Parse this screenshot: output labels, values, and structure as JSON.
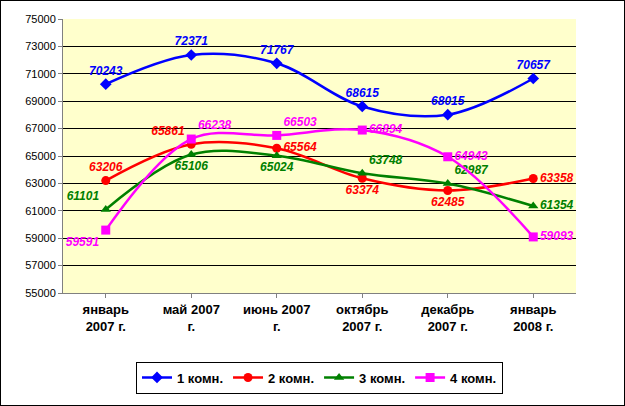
{
  "chart_data": {
    "type": "line",
    "categories": [
      "январь 2007 г.",
      "май 2007 г.",
      "июнь 2007 г.",
      "октябрь 2007 г.",
      "декабрь 2007 г.",
      "январь 2008 г."
    ],
    "series": [
      {
        "name": "1 комн.",
        "color": "#0000FF",
        "marker": "diamond",
        "values": [
          70243,
          72371,
          71767,
          68615,
          68015,
          70657
        ]
      },
      {
        "name": "2 комн.",
        "color": "#FF0000",
        "marker": "circle",
        "values": [
          63206,
          65861,
          65564,
          63374,
          62485,
          63358
        ]
      },
      {
        "name": "3 комн.",
        "color": "#008000",
        "marker": "triangle",
        "values": [
          61101,
          65106,
          65024,
          63748,
          62987,
          61354
        ]
      },
      {
        "name": "4 комн.",
        "color": "#FF00FF",
        "marker": "square",
        "values": [
          59591,
          66238,
          66503,
          66894,
          64943,
          59093
        ]
      }
    ],
    "ylim": [
      55000,
      75000
    ],
    "yticks": [
      55000,
      57000,
      59000,
      61000,
      63000,
      65000,
      67000,
      69000,
      71000,
      73000,
      75000
    ],
    "grid": true,
    "legend": "bottom",
    "data_labels": true,
    "line_style": "smooth"
  }
}
